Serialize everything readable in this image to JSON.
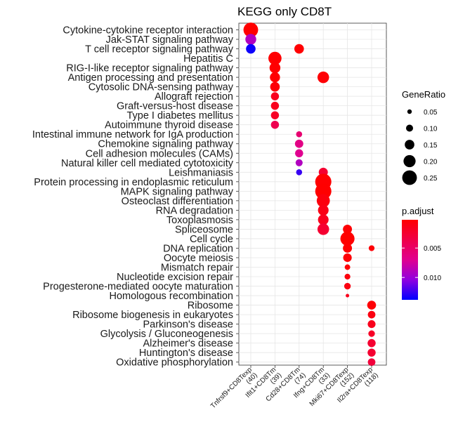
{
  "chart_data": {
    "type": "scatter",
    "title": "KEGG only CD8T",
    "xlabel": "",
    "ylabel": "",
    "grid": true,
    "x_categories": [
      "Tnfrsf9+CD8Texp\n(40)",
      "Ifit1+CD8Tm\n(39)",
      "Cd28+CD8Tm\n(74)",
      "Ifng+CD8Tm\n(33)",
      "Mki67+CD8Texp\n(152)",
      "Il2ra+CD8Texp\n(118)"
    ],
    "y_categories": [
      "Cytokine-cytokine receptor interaction",
      "Jak-STAT signaling pathway",
      "T cell receptor signaling pathway",
      "Hepatitis C",
      "RIG-I-like receptor signaling pathway",
      "Antigen processing and presentation",
      "Cytosolic DNA-sensing pathway",
      "Allograft rejection",
      "Graft-versus-host disease",
      "Type I diabetes mellitus",
      "Autoimmune thyroid disease",
      "Intestinal immune network for IgA production",
      "Chemokine signaling pathway",
      "Cell adhesion molecules (CAMs)",
      "Natural killer cell mediated cytotoxicity",
      "Leishmaniasis",
      "Protein processing in endoplasmic reticulum",
      "MAPK signaling pathway",
      "Osteoclast differentiation",
      "RNA degradation",
      "Toxoplasmosis",
      "Spliceosome",
      "Cell cycle",
      "DNA replication",
      "Oocyte meiosis",
      "Mismatch repair",
      "Nucleotide excision repair",
      "Progesterone-mediated oocyte maturation",
      "Homologous recombination",
      "Ribosome",
      "Ribosome biogenesis in eukaryotes",
      "Parkinson's disease",
      "Glycolysis / Gluconeogenesis",
      "Alzheimer's disease",
      "Huntington's disease",
      "Oxidative phosphorylation"
    ],
    "points": [
      {
        "x": 0,
        "y": 0,
        "gene_ratio": 0.25,
        "p_adjust": 0.0002
      },
      {
        "x": 0,
        "y": 1,
        "gene_ratio": 0.175,
        "p_adjust": 0.009
      },
      {
        "x": 0,
        "y": 2,
        "gene_ratio": 0.15,
        "p_adjust": 0.0135
      },
      {
        "x": 2,
        "y": 2,
        "gene_ratio": 0.15,
        "p_adjust": 0.0003
      },
      {
        "x": 1,
        "y": 3,
        "gene_ratio": 0.22,
        "p_adjust": 0.0003
      },
      {
        "x": 1,
        "y": 4,
        "gene_ratio": 0.175,
        "p_adjust": 0.0003
      },
      {
        "x": 1,
        "y": 5,
        "gene_ratio": 0.16,
        "p_adjust": 0.0003
      },
      {
        "x": 3,
        "y": 5,
        "gene_ratio": 0.19,
        "p_adjust": 0.0005
      },
      {
        "x": 1,
        "y": 6,
        "gene_ratio": 0.15,
        "p_adjust": 0.0006
      },
      {
        "x": 1,
        "y": 7,
        "gene_ratio": 0.12,
        "p_adjust": 0.0016
      },
      {
        "x": 1,
        "y": 8,
        "gene_ratio": 0.12,
        "p_adjust": 0.0016
      },
      {
        "x": 1,
        "y": 9,
        "gene_ratio": 0.12,
        "p_adjust": 0.002
      },
      {
        "x": 1,
        "y": 10,
        "gene_ratio": 0.12,
        "p_adjust": 0.004
      },
      {
        "x": 2,
        "y": 11,
        "gene_ratio": 0.08,
        "p_adjust": 0.0055
      },
      {
        "x": 2,
        "y": 12,
        "gene_ratio": 0.125,
        "p_adjust": 0.0065
      },
      {
        "x": 2,
        "y": 13,
        "gene_ratio": 0.12,
        "p_adjust": 0.007
      },
      {
        "x": 2,
        "y": 14,
        "gene_ratio": 0.1,
        "p_adjust": 0.009
      },
      {
        "x": 2,
        "y": 15,
        "gene_ratio": 0.08,
        "p_adjust": 0.0125
      },
      {
        "x": 3,
        "y": 15,
        "gene_ratio": 0.14,
        "p_adjust": 0.0025
      },
      {
        "x": 3,
        "y": 16,
        "gene_ratio": 0.28,
        "p_adjust": 0.0003
      },
      {
        "x": 3,
        "y": 17,
        "gene_ratio": 0.28,
        "p_adjust": 0.0002
      },
      {
        "x": 3,
        "y": 18,
        "gene_ratio": 0.22,
        "p_adjust": 0.0008
      },
      {
        "x": 3,
        "y": 19,
        "gene_ratio": 0.17,
        "p_adjust": 0.0012
      },
      {
        "x": 3,
        "y": 20,
        "gene_ratio": 0.17,
        "p_adjust": 0.0016
      },
      {
        "x": 3,
        "y": 21,
        "gene_ratio": 0.19,
        "p_adjust": 0.0025
      },
      {
        "x": 4,
        "y": 21,
        "gene_ratio": 0.14,
        "p_adjust": 0.0004
      },
      {
        "x": 4,
        "y": 22,
        "gene_ratio": 0.24,
        "p_adjust": 0.0002
      },
      {
        "x": 4,
        "y": 23,
        "gene_ratio": 0.14,
        "p_adjust": 0.0004
      },
      {
        "x": 5,
        "y": 23,
        "gene_ratio": 0.075,
        "p_adjust": 0.0005
      },
      {
        "x": 4,
        "y": 24,
        "gene_ratio": 0.13,
        "p_adjust": 0.0005
      },
      {
        "x": 4,
        "y": 25,
        "gene_ratio": 0.07,
        "p_adjust": 0.0005
      },
      {
        "x": 4,
        "y": 26,
        "gene_ratio": 0.075,
        "p_adjust": 0.0008
      },
      {
        "x": 4,
        "y": 27,
        "gene_ratio": 0.09,
        "p_adjust": 0.001
      },
      {
        "x": 4,
        "y": 28,
        "gene_ratio": 0.03,
        "p_adjust": 0.0015
      },
      {
        "x": 5,
        "y": 29,
        "gene_ratio": 0.135,
        "p_adjust": 0.0005
      },
      {
        "x": 5,
        "y": 30,
        "gene_ratio": 0.11,
        "p_adjust": 0.001
      },
      {
        "x": 5,
        "y": 31,
        "gene_ratio": 0.115,
        "p_adjust": 0.0015
      },
      {
        "x": 5,
        "y": 32,
        "gene_ratio": 0.09,
        "p_adjust": 0.002
      },
      {
        "x": 5,
        "y": 33,
        "gene_ratio": 0.12,
        "p_adjust": 0.0025
      },
      {
        "x": 5,
        "y": 34,
        "gene_ratio": 0.12,
        "p_adjust": 0.0025
      },
      {
        "x": 5,
        "y": 35,
        "gene_ratio": 0.11,
        "p_adjust": 0.003
      }
    ],
    "legend_size": {
      "title": "GeneRatio",
      "values": [
        0.05,
        0.1,
        0.15,
        0.2,
        0.25
      ],
      "labels": [
        "0.05",
        "0.10",
        "0.15",
        "0.20",
        "0.25"
      ]
    },
    "legend_color": {
      "title": "p.adjust",
      "range": [
        0.0002,
        0.0138
      ],
      "ticks": [
        0.005,
        0.01
      ],
      "tick_labels": [
        "0.005",
        "0.010"
      ],
      "low_color": "#FF0000",
      "high_color": "#0000FF"
    },
    "legend_placement": "right"
  }
}
